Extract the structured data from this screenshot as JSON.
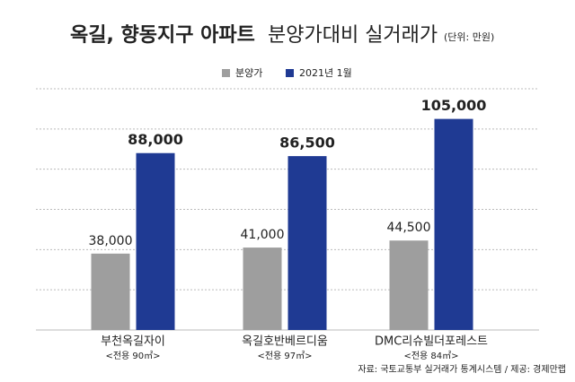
{
  "chart_data": {
    "type": "bar",
    "title": [
      "옥길, 향동지구 아파트",
      "분양가대비 실거래가"
    ],
    "unit": "(단위: 만원)",
    "categories": [
      "부천옥길자이",
      "옥길호반베르디움",
      "DMC리슈빌더포레스트"
    ],
    "category_notes": [
      "<전용 90㎡>",
      "<전용 97㎡>",
      "<전용 84㎡>"
    ],
    "series": [
      {
        "name": "분양가",
        "color": "#9e9e9e",
        "values": [
          38000,
          41000,
          44500
        ],
        "value_labels": [
          "38,000",
          "41,000",
          "44,500"
        ]
      },
      {
        "name": "2021년 1월",
        "color": "#1f3a93",
        "values": [
          88000,
          86500,
          105000
        ],
        "value_labels": [
          "88,000",
          "86,500",
          "105,000"
        ]
      }
    ],
    "ylim": [
      0,
      120000
    ],
    "yticks": [
      0,
      20000,
      40000,
      60000,
      80000,
      100000,
      120000
    ],
    "grid": true,
    "source": "자료: 국토교통부 실거래가 통계시스템 / 제공: 경제만랩"
  }
}
